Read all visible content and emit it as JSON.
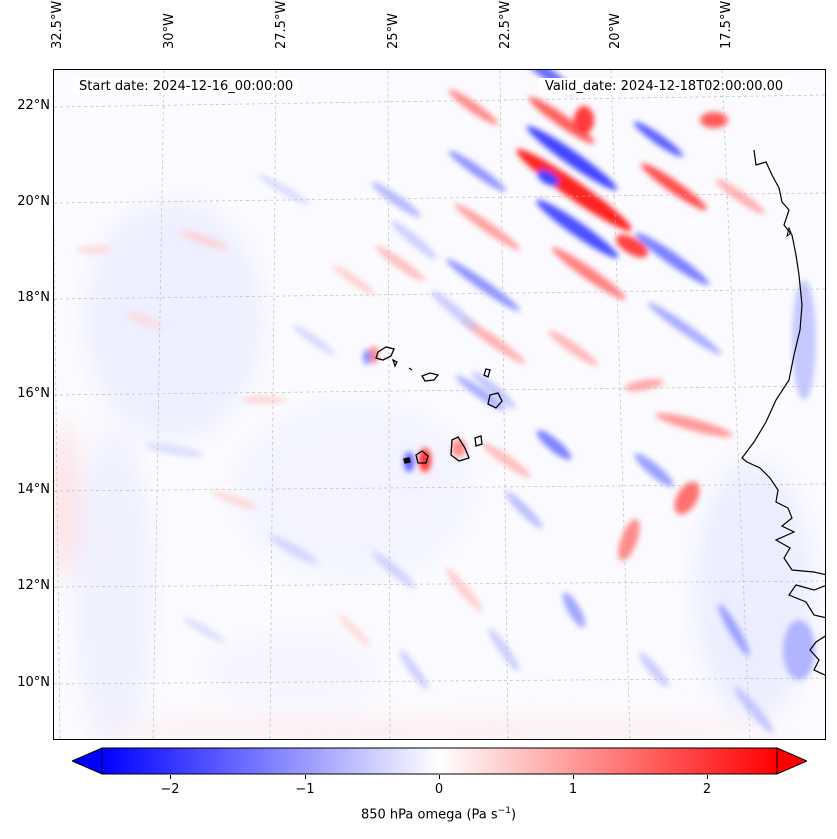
{
  "header": {
    "start_date": "Start date: 2024-12-16_00:00:00",
    "valid_date": "Valid_date: 2024-12-18T02:00:00.00"
  },
  "axes": {
    "lon_labels": [
      "32.5°W",
      "30°W",
      "27.5°W",
      "25°W",
      "22.5°W",
      "20°W",
      "17.5°W"
    ],
    "lat_labels": [
      "22°N",
      "20°N",
      "18°N",
      "16°N",
      "14°N",
      "12°N",
      "10°N"
    ]
  },
  "colorbar": {
    "label": "850 hPa omega (Pa s",
    "label_sup": "−1",
    "label_end": ")",
    "ticks": [
      "−2",
      "−1",
      "0",
      "1",
      "2"
    ],
    "min": -2.5,
    "max": 2.5,
    "low_color": "#0000ff",
    "mid_color": "#ffffff",
    "high_color": "#ff0000"
  },
  "map": {
    "field": "850 hPa omega",
    "units": "Pa s-1",
    "features": [
      "coastline",
      "cape-verde-islands",
      "gridlines"
    ]
  }
}
